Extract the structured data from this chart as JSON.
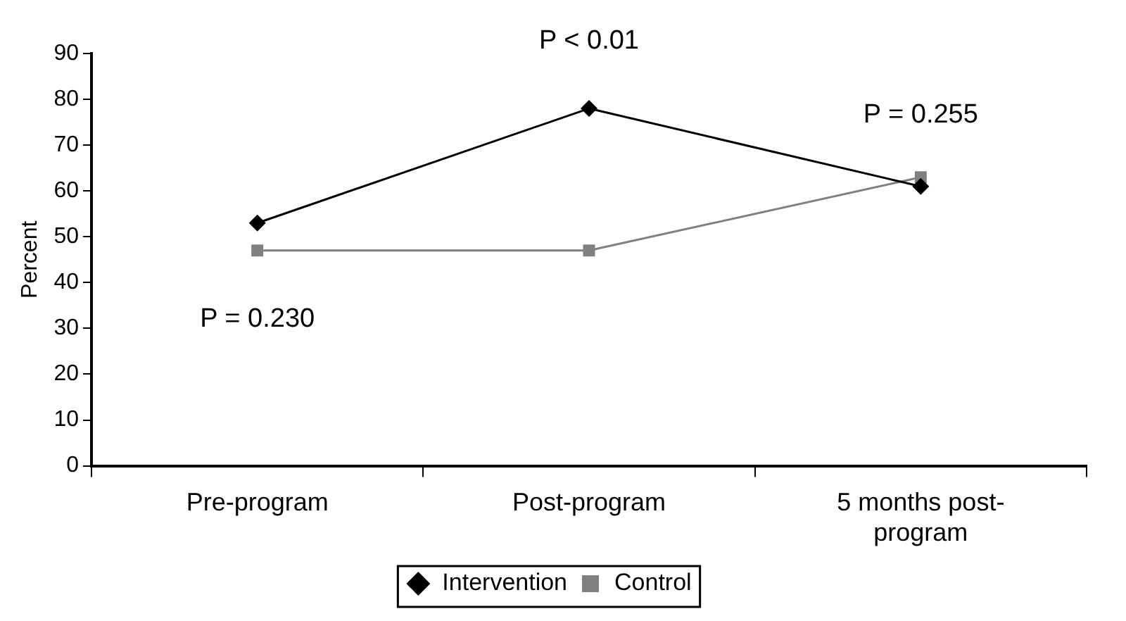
{
  "chart_data": {
    "type": "line",
    "ylabel": "Percent",
    "categories": [
      "Pre-program",
      "Post-program",
      "5 months post-program"
    ],
    "series": [
      {
        "name": "Intervention",
        "color": "#000000",
        "marker": "diamond",
        "values": [
          53,
          78,
          61
        ]
      },
      {
        "name": "Control",
        "color": "#808080",
        "marker": "square",
        "values": [
          47,
          47,
          63
        ]
      }
    ],
    "ylim": [
      0,
      90
    ],
    "yticks": [
      0,
      10,
      20,
      30,
      40,
      50,
      60,
      70,
      80,
      90
    ],
    "grid": false,
    "legend": "bottom",
    "annotations": [
      "P = 0.230",
      "P < 0.01",
      "P = 0.255"
    ]
  }
}
